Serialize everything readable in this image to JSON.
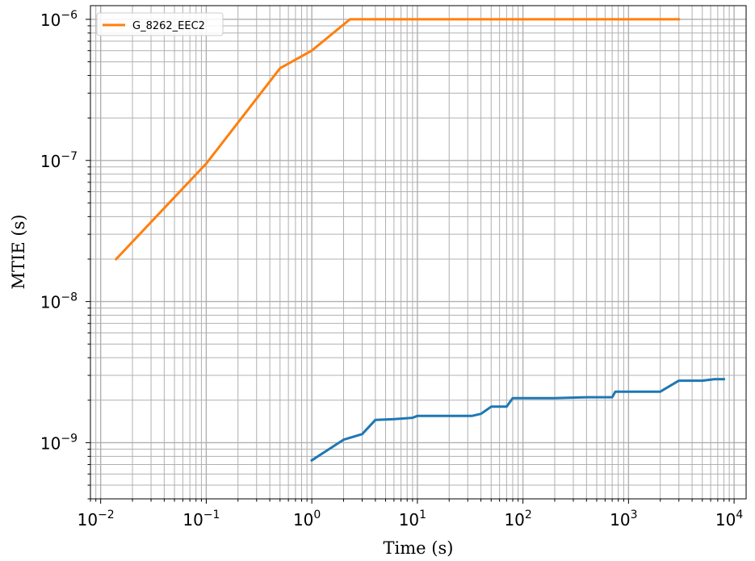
{
  "chart_data": {
    "type": "line",
    "x_scale": "log",
    "y_scale": "log",
    "xlabel": "Time (s)",
    "ylabel": "MTIE (s)",
    "xlim": [
      0.008,
      13000
    ],
    "ylim": [
      4e-10,
      1.25e-06
    ],
    "grid": "major-and-minor",
    "legend_position": "top-left",
    "x_ticks": [
      {
        "value": 0.01,
        "base": "10",
        "exp": "−2"
      },
      {
        "value": 0.1,
        "base": "10",
        "exp": "−1"
      },
      {
        "value": 1,
        "base": "10",
        "exp": "0"
      },
      {
        "value": 10,
        "base": "10",
        "exp": "1"
      },
      {
        "value": 100,
        "base": "10",
        "exp": "2"
      },
      {
        "value": 1000,
        "base": "10",
        "exp": "3"
      },
      {
        "value": 10000,
        "base": "10",
        "exp": "4"
      }
    ],
    "y_ticks": [
      {
        "value": 1e-09,
        "base": "10",
        "exp": "−9"
      },
      {
        "value": 1e-08,
        "base": "10",
        "exp": "−8"
      },
      {
        "value": 1e-07,
        "base": "10",
        "exp": "−7"
      },
      {
        "value": 1e-06,
        "base": "10",
        "exp": "−6"
      }
    ],
    "series": [
      {
        "name": "",
        "color": "#1f77b4",
        "in_legend": false,
        "points": [
          [
            1,
            7.5e-10
          ],
          [
            2,
            1.05e-09
          ],
          [
            3,
            1.15e-09
          ],
          [
            4,
            1.45e-09
          ],
          [
            6,
            1.47e-09
          ],
          [
            9,
            1.5e-09
          ],
          [
            10,
            1.55e-09
          ],
          [
            20,
            1.55e-09
          ],
          [
            33,
            1.55e-09
          ],
          [
            40,
            1.6e-09
          ],
          [
            50,
            1.8e-09
          ],
          [
            70,
            1.8e-09
          ],
          [
            80,
            2.07e-09
          ],
          [
            200,
            2.07e-09
          ],
          [
            400,
            2.1e-09
          ],
          [
            700,
            2.1e-09
          ],
          [
            750,
            2.3e-09
          ],
          [
            2000,
            2.3e-09
          ],
          [
            3000,
            2.75e-09
          ],
          [
            5000,
            2.75e-09
          ],
          [
            6500,
            2.82e-09
          ],
          [
            8000,
            2.82e-09
          ]
        ]
      },
      {
        "name": "G_8262_EEC2",
        "color": "#ff7f0e",
        "in_legend": true,
        "points": [
          [
            0.014,
            2e-08
          ],
          [
            0.1,
            9.5e-08
          ],
          [
            0.5,
            4.5e-07
          ],
          [
            1,
            6e-07
          ],
          [
            2.3,
            1e-06
          ],
          [
            3000,
            1e-06
          ]
        ]
      }
    ]
  }
}
